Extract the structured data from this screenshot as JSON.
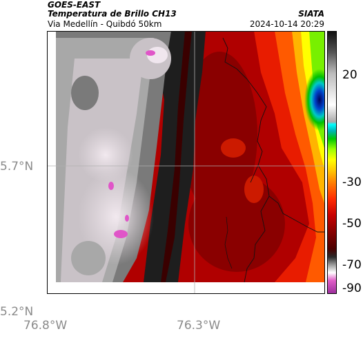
{
  "header": {
    "satellite": "GOES-EAST",
    "product": "Temperatura de Brillo CH13",
    "route": "Via Medellín - Quibdó 50km",
    "agency": "SIATA",
    "datetime": "2024-10-14 20:29"
  },
  "map": {
    "lat_labels": [
      "5.7°N",
      "5.2°N"
    ],
    "lon_labels": [
      "76.8°W",
      "76.3°W"
    ],
    "gridlines": true
  },
  "colorbar": {
    "ticks": [
      "20",
      "-30",
      "-50",
      "-70",
      "-90"
    ],
    "stops": [
      "#9b2d9b",
      "#e05fc8",
      "#ffffff",
      "#d8d8d8",
      "#9a9a9a",
      "#6a6a6a",
      "#2a2a2a",
      "#4a0000",
      "#8b0000",
      "#c80000",
      "#ff2a00",
      "#ff7a00",
      "#ffc800",
      "#ffff00",
      "#9cff00",
      "#00c800",
      "#00b4b4",
      "#00ffff",
      "#0050ff",
      "#0000b4",
      "#5a5a5a",
      "#aaaaaa",
      "#ffffff",
      "#bbbbbb",
      "#555555",
      "#111111"
    ]
  }
}
